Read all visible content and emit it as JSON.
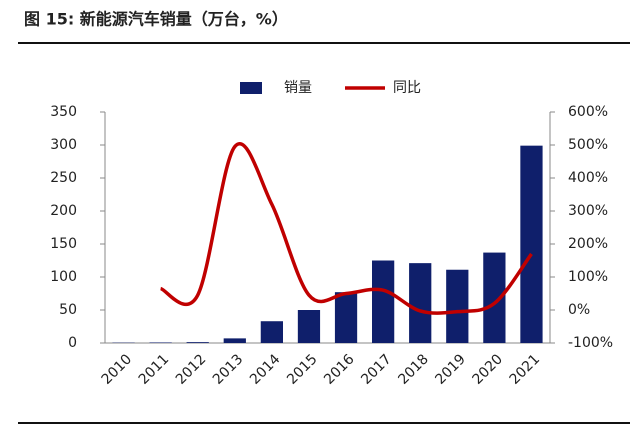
{
  "chart_data": {
    "type": "bar-line",
    "title": "图 15: 新能源汽车销量（万台，%）",
    "categories": [
      "2010",
      "2011",
      "2012",
      "2013",
      "2014",
      "2015",
      "2016",
      "2017",
      "2018",
      "2019",
      "2020",
      "2021"
    ],
    "series": [
      {
        "name": "销量",
        "type": "bar",
        "color": "#0f1f6b",
        "values": [
          0.5,
          0.8,
          1.3,
          7,
          33,
          50,
          77,
          125,
          121,
          111,
          137,
          299
        ]
      },
      {
        "name": "同比",
        "type": "line",
        "axis": "y2",
        "color": "#c00000",
        "values": [
          null,
          65,
          45,
          495,
          320,
          45,
          50,
          60,
          -3,
          -5,
          20,
          170
        ]
      }
    ],
    "ylim": [
      0,
      350
    ],
    "yticks": [
      0,
      50,
      100,
      150,
      200,
      250,
      300,
      350
    ],
    "y2lim": [
      -100,
      600
    ],
    "y2ticks": [
      {
        "value": -100,
        "label": "-100%"
      },
      {
        "value": 0,
        "label": "0%"
      },
      {
        "value": 100,
        "label": "100%"
      },
      {
        "value": 200,
        "label": "200%"
      },
      {
        "value": 300,
        "label": "300%"
      },
      {
        "value": 400,
        "label": "400%"
      },
      {
        "value": 500,
        "label": "500%"
      },
      {
        "value": 600,
        "label": "600%"
      }
    ],
    "legend": "top"
  }
}
